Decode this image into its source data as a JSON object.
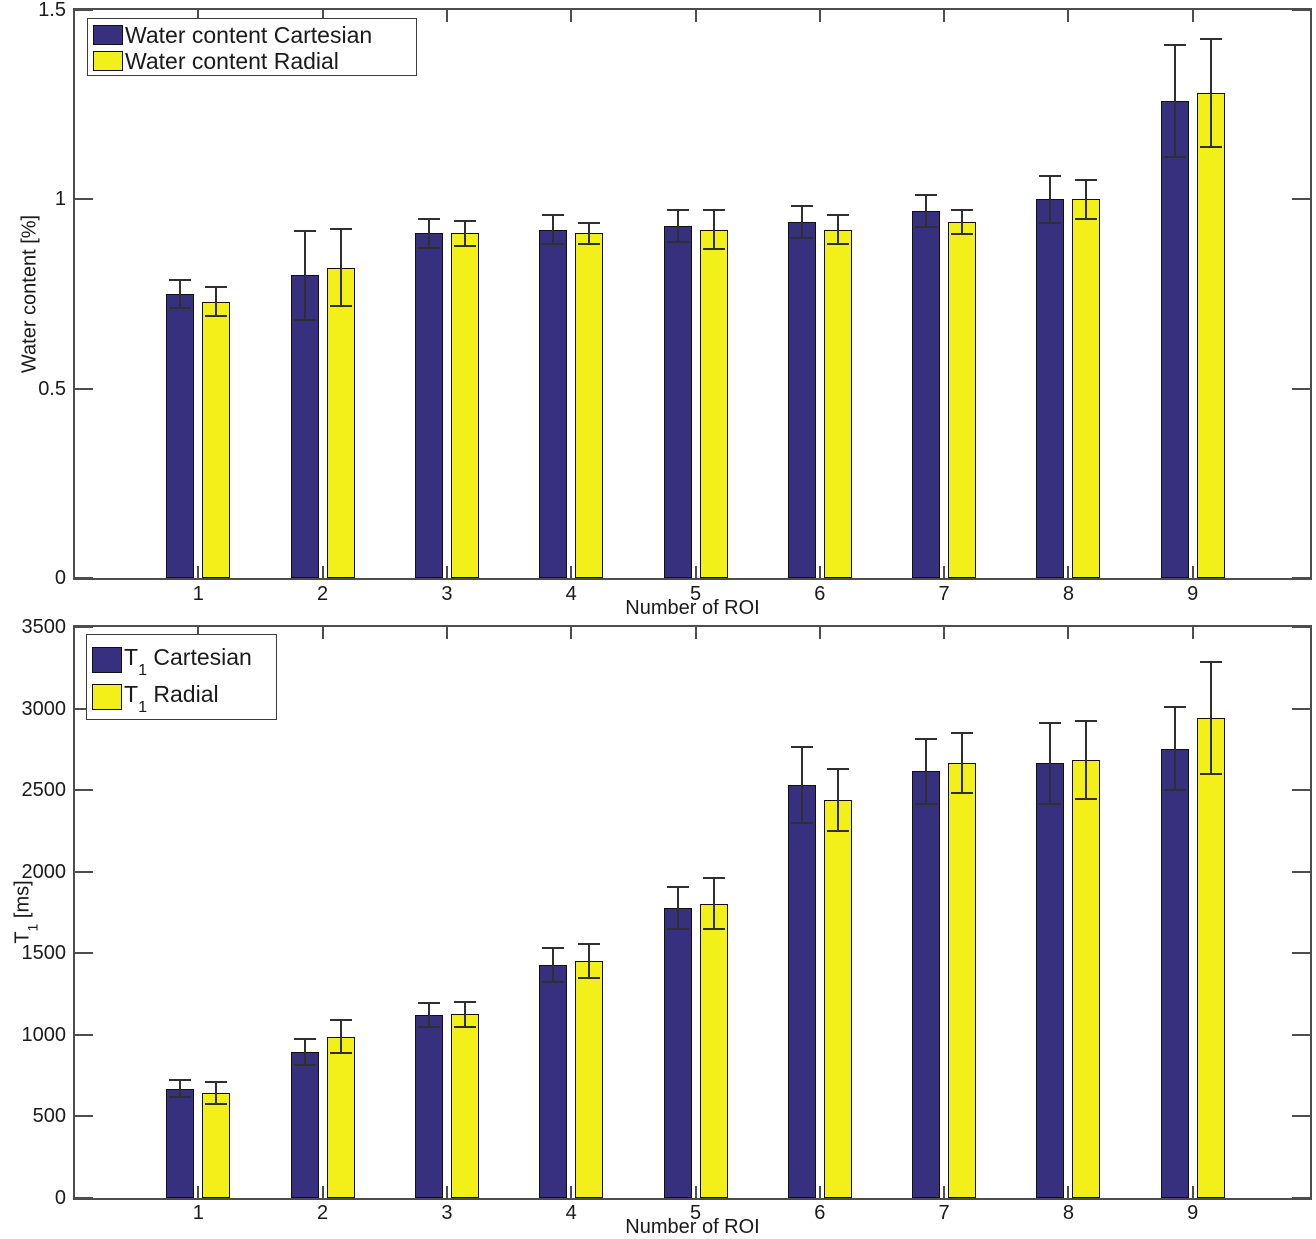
{
  "colors": {
    "cartesian_bar": "#37307f",
    "radial_bar": "#f3f019",
    "bar_edge": "#101010",
    "error_bar": "#2f2f2f",
    "axis": "#4d4d4d",
    "text": "#1a1a1a"
  },
  "chart_data": [
    {
      "type": "bar",
      "title": "",
      "xlabel": "Number of ROI",
      "ylabel": "Water content [%]",
      "ylim": [
        0,
        1.5
      ],
      "yticks": [
        0,
        0.5,
        1,
        1.5
      ],
      "ytick_labels": [
        "0",
        "0.5",
        "1",
        "1.5"
      ],
      "categories": [
        "1",
        "2",
        "3",
        "4",
        "5",
        "6",
        "7",
        "8",
        "9"
      ],
      "grid": false,
      "legend_position": "top-left",
      "error_bars": true,
      "series": [
        {
          "name": "Water content Cartesian",
          "color": "#37307f",
          "values": [
            0.75,
            0.8,
            0.91,
            0.92,
            0.93,
            0.94,
            0.97,
            1.0,
            1.26
          ],
          "errors": [
            0.04,
            0.12,
            0.04,
            0.04,
            0.045,
            0.045,
            0.045,
            0.065,
            0.15
          ]
        },
        {
          "name": "Water content Radial",
          "color": "#f3f019",
          "values": [
            0.73,
            0.82,
            0.91,
            0.91,
            0.92,
            0.92,
            0.94,
            1.0,
            1.28
          ],
          "errors": [
            0.04,
            0.105,
            0.035,
            0.03,
            0.055,
            0.04,
            0.035,
            0.055,
            0.145
          ]
        }
      ]
    },
    {
      "type": "bar",
      "title": "",
      "xlabel": "Number of ROI",
      "ylabel": "T_1 [ms]",
      "ylabel_parts": {
        "pre": "T",
        "sub": "1",
        "rest": " [ms]"
      },
      "ylim": [
        0,
        3500
      ],
      "yticks": [
        0,
        500,
        1000,
        1500,
        2000,
        2500,
        3000,
        3500
      ],
      "ytick_labels": [
        "0",
        "500",
        "1000",
        "1500",
        "2000",
        "2500",
        "3000",
        "3500"
      ],
      "categories": [
        "1",
        "2",
        "3",
        "4",
        "5",
        "6",
        "7",
        "8",
        "9"
      ],
      "grid": false,
      "legend_position": "top-left",
      "error_bars": true,
      "series": [
        {
          "name": "T_1 Cartesian",
          "label_parts": {
            "pre": "T",
            "sub": "1",
            "rest": " Cartesian"
          },
          "color": "#37307f",
          "values": [
            670,
            895,
            1120,
            1430,
            1775,
            2530,
            2615,
            2665,
            2755
          ],
          "errors": [
            60,
            85,
            80,
            110,
            135,
            240,
            205,
            255,
            260
          ]
        },
        {
          "name": "T_1 Radial",
          "label_parts": {
            "pre": "T",
            "sub": "1",
            "rest": " Radial"
          },
          "color": "#f3f019",
          "values": [
            645,
            990,
            1125,
            1450,
            1805,
            2440,
            2665,
            2685,
            2940
          ],
          "errors": [
            75,
            110,
            80,
            110,
            160,
            195,
            190,
            245,
            350
          ]
        }
      ]
    }
  ]
}
